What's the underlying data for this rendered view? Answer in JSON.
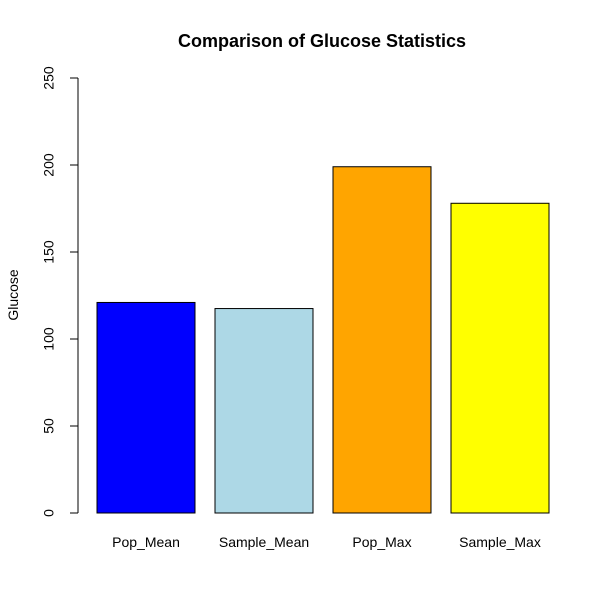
{
  "chart_data": {
    "type": "bar",
    "title": "Comparison of Glucose Statistics",
    "xlabel": "",
    "ylabel": "Glucose",
    "categories": [
      "Pop_Mean",
      "Sample_Mean",
      "Pop_Max",
      "Sample_Max"
    ],
    "values": [
      121,
      117.5,
      199,
      178
    ],
    "colors": [
      "#0000FF",
      "#ADD8E6",
      "#FFA500",
      "#FFFF00"
    ],
    "ylim": [
      0,
      250
    ],
    "yticks": [
      0,
      50,
      100,
      150,
      200,
      250
    ],
    "grid": false,
    "legend": "none"
  }
}
